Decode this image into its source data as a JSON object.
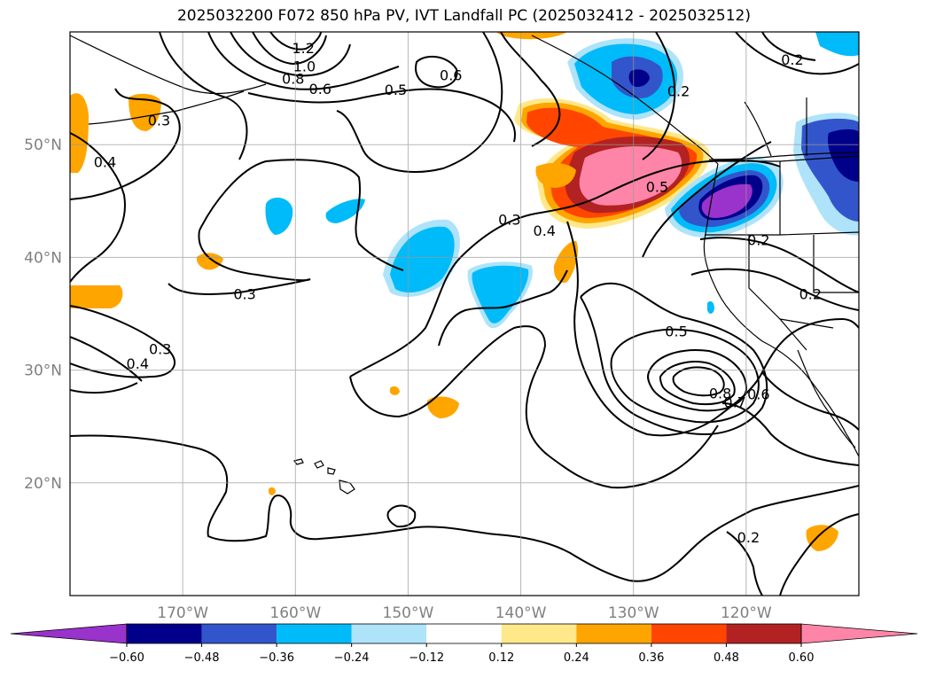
{
  "title": "2025032200 F072 850 hPa PV, IVT Landfall PC (2025032412 - 2025032512)",
  "map": {
    "lon_range": [
      -180,
      -110
    ],
    "lat_range": [
      10,
      60
    ],
    "lon_ticks": [
      {
        "value": -170,
        "label": "170°W"
      },
      {
        "value": -160,
        "label": "160°W"
      },
      {
        "value": -150,
        "label": "150°W"
      },
      {
        "value": -140,
        "label": "140°W"
      },
      {
        "value": -130,
        "label": "130°W"
      },
      {
        "value": -120,
        "label": "120°W"
      }
    ],
    "lat_ticks": [
      {
        "value": 50,
        "label": "50°N"
      },
      {
        "value": 40,
        "label": "40°N"
      },
      {
        "value": 30,
        "label": "30°N"
      },
      {
        "value": 20,
        "label": "20°N"
      }
    ],
    "grid": true,
    "contour_labels": [
      {
        "text": "1.2",
        "lon": -159.3,
        "lat": 58.5
      },
      {
        "text": "1.0",
        "lon": -159.2,
        "lat": 56.9
      },
      {
        "text": "0.8",
        "lon": -160.2,
        "lat": 55.8
      },
      {
        "text": "0.6",
        "lon": -157.8,
        "lat": 54.9
      },
      {
        "text": "0.5",
        "lon": -151.1,
        "lat": 54.8
      },
      {
        "text": "0.6",
        "lon": -146.2,
        "lat": 56.1
      },
      {
        "text": "0.3",
        "lon": -172.1,
        "lat": 52.1
      },
      {
        "text": "0.4",
        "lon": -176.9,
        "lat": 48.4
      },
      {
        "text": "0.3",
        "lon": -141.0,
        "lat": 43.3
      },
      {
        "text": "0.4",
        "lon": -137.9,
        "lat": 42.3
      },
      {
        "text": "0.5",
        "lon": -127.9,
        "lat": 46.2
      },
      {
        "text": "0.2",
        "lon": -126.0,
        "lat": 54.7
      },
      {
        "text": "0.2",
        "lon": -115.9,
        "lat": 57.5
      },
      {
        "text": "0.2",
        "lon": -118.9,
        "lat": 41.5
      },
      {
        "text": "0.2",
        "lon": -114.3,
        "lat": 36.7
      },
      {
        "text": "0.3",
        "lon": -164.5,
        "lat": 36.7
      },
      {
        "text": "0.3",
        "lon": -172.0,
        "lat": 31.8
      },
      {
        "text": "0.4",
        "lon": -174.0,
        "lat": 30.5
      },
      {
        "text": "0.5",
        "lon": -126.2,
        "lat": 33.4
      },
      {
        "text": "0.8",
        "lon": -122.3,
        "lat": 27.9
      },
      {
        "text": "0.7",
        "lon": -121.0,
        "lat": 27.1
      },
      {
        "text": "0.6",
        "lon": -118.9,
        "lat": 27.8
      },
      {
        "text": "0.2",
        "lon": -119.8,
        "lat": 15.1
      }
    ]
  },
  "colorbar": {
    "ticks": [
      "−0.60",
      "−0.48",
      "−0.36",
      "−0.24",
      "−0.12",
      "0.12",
      "0.24",
      "0.36",
      "0.48",
      "0.60"
    ],
    "colors": {
      "under": "#9933cc",
      "bins": [
        "#00008b",
        "#3355cc",
        "#00bbf9",
        "#aee3fa",
        "#ffffff",
        "#ffe88a",
        "#ffa500",
        "#ff4500",
        "#b22222"
      ],
      "over": "#ff85a8"
    }
  }
}
